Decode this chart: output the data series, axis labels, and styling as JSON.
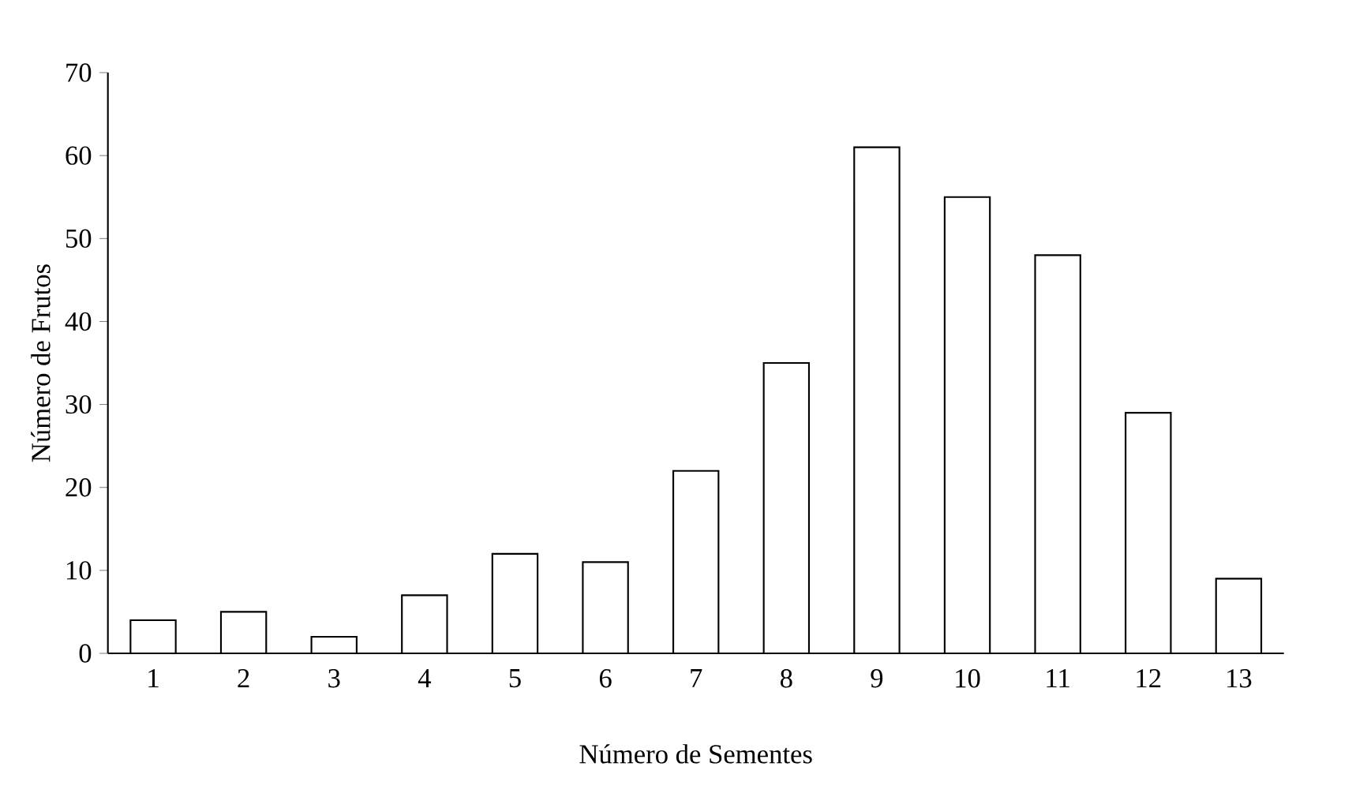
{
  "chart_data": {
    "type": "bar",
    "xlabel": "Número de Sementes",
    "ylabel": "Número de Frutos",
    "categories": [
      "1",
      "2",
      "3",
      "4",
      "5",
      "6",
      "7",
      "8",
      "9",
      "10",
      "11",
      "12",
      "13"
    ],
    "values": [
      4,
      5,
      2,
      7,
      12,
      11,
      22,
      35,
      61,
      55,
      48,
      29,
      9
    ],
    "color": "#ffffff",
    "ylim": [
      0,
      70
    ],
    "yticks": [
      0,
      10,
      20,
      30,
      40,
      50,
      60,
      70
    ]
  }
}
